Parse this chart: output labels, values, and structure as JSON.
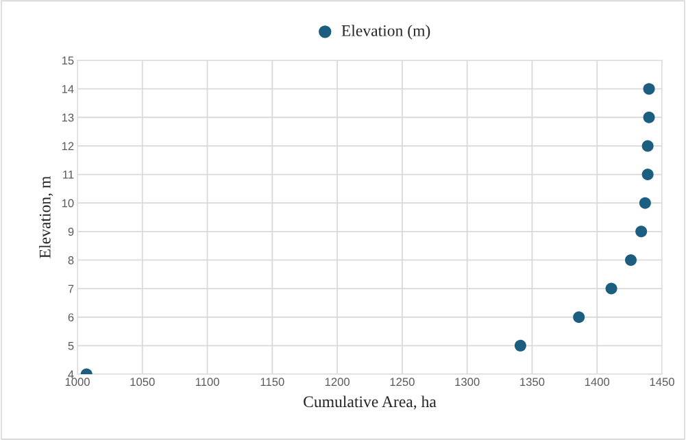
{
  "chart_data": {
    "type": "scatter",
    "xlabel": "Cumulative Area, ha",
    "ylabel": "Elevation, m",
    "x": [
      1007,
      1341,
      1386,
      1411,
      1426,
      1434,
      1437,
      1439,
      1439,
      1440,
      1440
    ],
    "series": [
      {
        "name": "Elevation (m)",
        "color": "#1b5e80",
        "values": [
          4,
          5,
          6,
          7,
          8,
          9,
          10,
          11,
          12,
          13,
          14
        ]
      }
    ],
    "xlim": [
      1000,
      1450
    ],
    "xticks": [
      1000,
      1050,
      1100,
      1150,
      1200,
      1250,
      1300,
      1350,
      1400,
      1450
    ],
    "ylim": [
      4,
      15
    ],
    "yticks": [
      4,
      5,
      6,
      7,
      8,
      9,
      10,
      11,
      12,
      13,
      14,
      15
    ],
    "grid": true,
    "legend": "top",
    "marker": "circle"
  }
}
